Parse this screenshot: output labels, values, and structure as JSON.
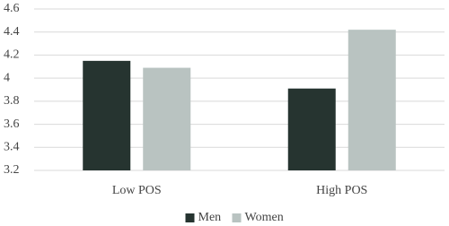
{
  "chart_data": {
    "type": "bar",
    "categories": [
      "Low POS",
      "High POS"
    ],
    "series": [
      {
        "name": "Men",
        "color": "#263430",
        "values": [
          4.15,
          3.91
        ]
      },
      {
        "name": "Women",
        "color": "#b9c3c1",
        "values": [
          4.09,
          4.42
        ]
      }
    ],
    "ylim": [
      3.2,
      4.6
    ],
    "yticks": [
      3.2,
      3.4,
      3.6,
      3.8,
      4,
      4.2,
      4.4,
      4.6
    ],
    "grid": true,
    "legend": "bottom"
  }
}
